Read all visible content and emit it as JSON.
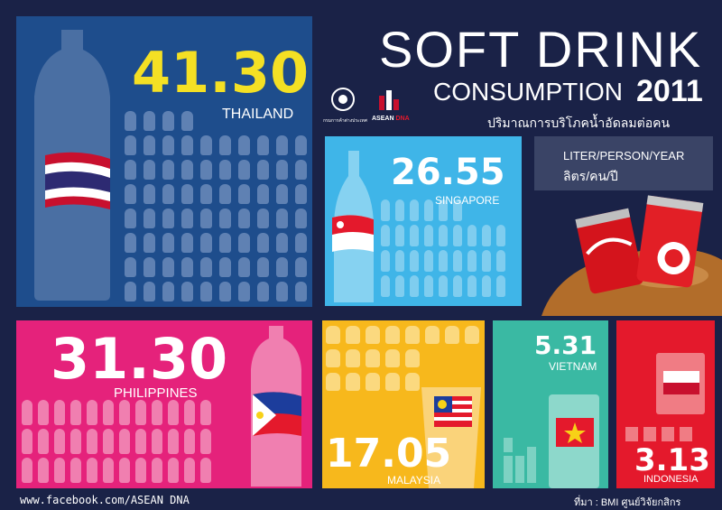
{
  "title": {
    "line1": "SOFT DRINK",
    "line2": "CONSUMPTION",
    "year": "2011",
    "thai_subtitle": "ปริมาณการบริโภคน้ำอัดลมต่อคน"
  },
  "logos": {
    "ministry": "กรมการค้าต่างประเทศ",
    "asean_dna_a": "ASEAN",
    "asean_dna_b": "DNA"
  },
  "unit": {
    "en": "LITER/PERSON/YEAR",
    "th": "ลิตร/คน/ปี"
  },
  "countries": {
    "thailand": {
      "value": "41.30",
      "name": "THAILAND"
    },
    "singapore": {
      "value": "26.55",
      "name": "SINGAPORE"
    },
    "philippines": {
      "value": "31.30",
      "name": "PHILIPPINES"
    },
    "malaysia": {
      "value": "17.05",
      "name": "MALAYSIA"
    },
    "vietnam": {
      "value": "5.31",
      "name": "VIETNAM"
    },
    "indonesia": {
      "value": "3.13",
      "name": "INDONESIA"
    }
  },
  "footer": {
    "website": "www.facebook.com/ASEAN DNA",
    "source": "ที่มา : BMI ศูนย์วิจัยกสิกร"
  },
  "colors": {
    "background": "#1a2247",
    "thailand": "#1e4d8c",
    "singapore": "#3fb5e8",
    "philippines": "#e5227b",
    "malaysia": "#f7b81c",
    "vietnam": "#3ab9a3",
    "indonesia": "#e4192c",
    "thailand_value": "#f4e024"
  }
}
